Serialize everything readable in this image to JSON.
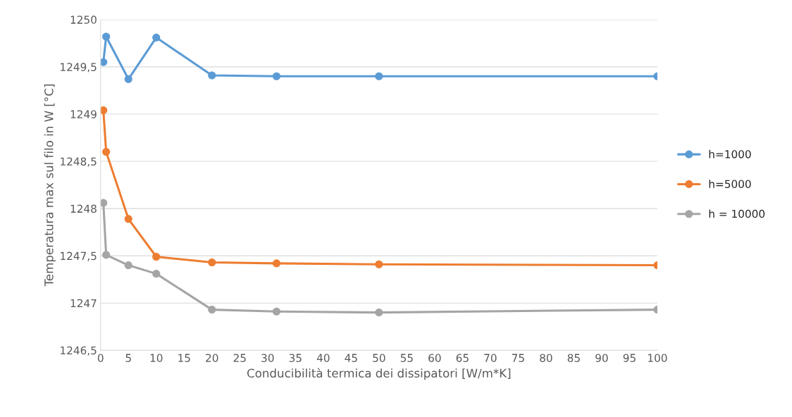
{
  "chart_data": {
    "type": "line",
    "xlabel": "Conducibilità termica dei dissipatori [W/m*K]",
    "ylabel": "Temperatura max sul filo in W [°C]",
    "x": [
      0.5,
      1,
      5,
      10,
      20,
      31.6,
      50,
      100
    ],
    "series": [
      {
        "name": "h=1000",
        "color": "#5b9bd5",
        "values": [
          1249.55,
          1249.82,
          1249.37,
          1249.81,
          1249.41,
          1249.4,
          1249.4,
          1249.4
        ]
      },
      {
        "name": "h=5000",
        "color": "#ed7d31",
        "values": [
          1249.04,
          1248.6,
          1247.89,
          1247.49,
          1247.43,
          1247.42,
          1247.41,
          1247.4
        ]
      },
      {
        "name": "h = 10000",
        "color": "#a5a5a5",
        "values": [
          1248.06,
          1247.51,
          1247.4,
          1247.31,
          1246.93,
          1246.91,
          1246.9,
          1246.93
        ]
      }
    ],
    "xlim": [
      0,
      100
    ],
    "xticks": [
      0,
      5,
      10,
      15,
      20,
      25,
      30,
      35,
      40,
      45,
      50,
      55,
      60,
      65,
      70,
      75,
      80,
      85,
      90,
      95,
      100
    ],
    "ylim": [
      1246.5,
      1250
    ],
    "yticks": [
      {
        "value": 1246.5,
        "label": "1246,5"
      },
      {
        "value": 1247,
        "label": "1247"
      },
      {
        "value": 1247.5,
        "label": "1247,5"
      },
      {
        "value": 1248,
        "label": "1248"
      },
      {
        "value": 1248.5,
        "label": "1248,5"
      },
      {
        "value": 1249,
        "label": "1249"
      },
      {
        "value": 1249.5,
        "label": "1249,5"
      },
      {
        "value": 1250,
        "label": "1250"
      }
    ],
    "grid": "y",
    "legend": "right",
    "marker": "circle",
    "line_style": "solid"
  }
}
